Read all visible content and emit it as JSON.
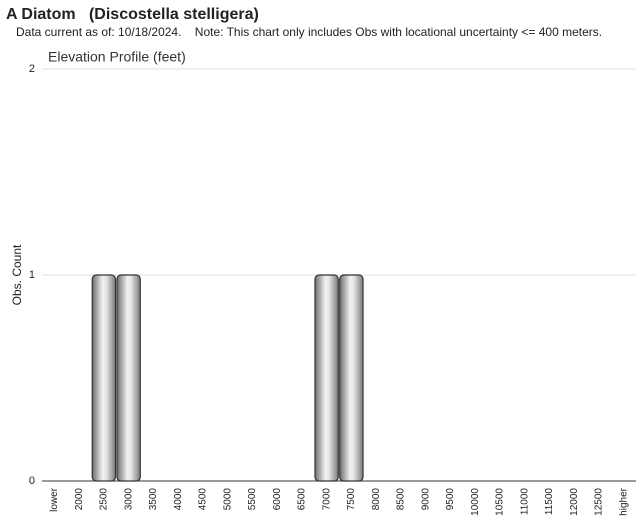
{
  "chart_data": {
    "type": "bar",
    "title": "A Diatom   (Discostella stelligera)",
    "subtitle": "Data current as of: 10/18/2024.    Note: This chart only includes Obs with locational uncertainty <= 400 meters.",
    "chart_title": "Elevation Profile (feet)",
    "y_label": "Obs. Count",
    "categories": [
      "lower",
      "2000",
      "2500",
      "3000",
      "3500",
      "4000",
      "4500",
      "5000",
      "5500",
      "6000",
      "6500",
      "7000",
      "7500",
      "8000",
      "8500",
      "9000",
      "9500",
      "10000",
      "10500",
      "11000",
      "11500",
      "12000",
      "12500",
      "higher"
    ],
    "values": [
      0,
      0,
      1,
      1,
      0,
      0,
      0,
      0,
      0,
      0,
      0,
      1,
      1,
      0,
      0,
      0,
      0,
      0,
      0,
      0,
      0,
      0,
      0,
      0
    ],
    "color": "#999999",
    "ylim": [
      0,
      2
    ],
    "yticks": [
      0,
      1,
      2
    ],
    "grid": true
  }
}
